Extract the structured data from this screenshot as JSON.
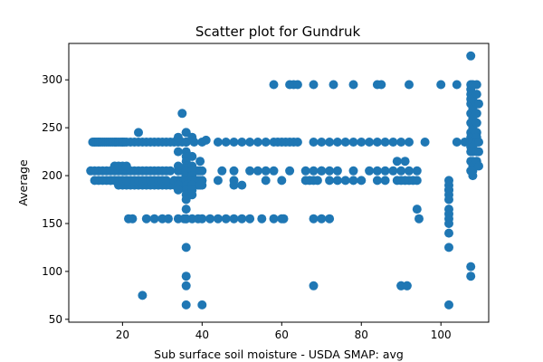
{
  "chart_data": {
    "type": "scatter",
    "title": "Scatter plot for Gundruk",
    "xlabel": "Sub surface soil moisture - USDA SMAP: avg",
    "ylabel": "Average",
    "xlim": [
      6.5,
      112
    ],
    "ylim": [
      47,
      338
    ],
    "xticks": [
      20,
      40,
      60,
      80,
      100
    ],
    "yticks": [
      50,
      100,
      150,
      200,
      250,
      300
    ],
    "grid": false,
    "legend": "none",
    "marker_color": "#1f77b4",
    "x": [
      12.5,
      13,
      13,
      13.5,
      14,
      14,
      14.5,
      15,
      15.5,
      16,
      16.5,
      17,
      17.5,
      18,
      18.5,
      19,
      19.5,
      20,
      20,
      20.5,
      21,
      22,
      23,
      24,
      25,
      26,
      27,
      28,
      29,
      30,
      31,
      32,
      33,
      35,
      36,
      12,
      13,
      14,
      15,
      16,
      17,
      18,
      19,
      20,
      20.5,
      21,
      22,
      23,
      24,
      25,
      26,
      27,
      28,
      29,
      30,
      31,
      32,
      34,
      35,
      36,
      37,
      38,
      39,
      40,
      19,
      20,
      21,
      22,
      23,
      24,
      25,
      26,
      27,
      28,
      29,
      30,
      31,
      32,
      33,
      34,
      35,
      36,
      37,
      38,
      39,
      40,
      17,
      18,
      19,
      20,
      21,
      22,
      23,
      24,
      25,
      26,
      27,
      28,
      29,
      30,
      31,
      33,
      34,
      35,
      36,
      37,
      38,
      39,
      40,
      13,
      14,
      15,
      16,
      17,
      18,
      19,
      20,
      21,
      24,
      36,
      35,
      18,
      19,
      20,
      21,
      21.5,
      22.5,
      26,
      28,
      30,
      31.5,
      34,
      35.5,
      36,
      37.5,
      39,
      40,
      42,
      44,
      46,
      48,
      50,
      52,
      55,
      58,
      60,
      60.5,
      34,
      36,
      38,
      40,
      41,
      44,
      46,
      48,
      50,
      52,
      54,
      56,
      58,
      59,
      60,
      61,
      62,
      63,
      64,
      68,
      70,
      72,
      74,
      76,
      78,
      80,
      82,
      84,
      86,
      88,
      90,
      92,
      96,
      104,
      106,
      45,
      48,
      52,
      58,
      62,
      66,
      68,
      70,
      74,
      78,
      82,
      84,
      86,
      88,
      89,
      90,
      91,
      92,
      94,
      38,
      40,
      44,
      48,
      56,
      60,
      66,
      67,
      68,
      69,
      72,
      74,
      76,
      78,
      80,
      84,
      86,
      89,
      90,
      91,
      92,
      93,
      94,
      48,
      50,
      54,
      56,
      70,
      72,
      58,
      62,
      63,
      64,
      68,
      73,
      78,
      84,
      85,
      92,
      100,
      104,
      68,
      70,
      72,
      90,
      91.5,
      94,
      94.5,
      36,
      36,
      36,
      36,
      36,
      36,
      36,
      36,
      36,
      36,
      36,
      36,
      36,
      36,
      36,
      36,
      36,
      36,
      37.5,
      37.5,
      37.5,
      37.5,
      37.5,
      37.5,
      37.5,
      37.5,
      37.5,
      34,
      34,
      34,
      34,
      34,
      39.5,
      39.5,
      39.5,
      39.5,
      25,
      36,
      40,
      68,
      90,
      91.5,
      102,
      102,
      102,
      102,
      102,
      102,
      102,
      102,
      102,
      102,
      102,
      102,
      102,
      107.5,
      107.5,
      107.5,
      107.5,
      107.5,
      107.5,
      107.5,
      107.5,
      107.5,
      107.5,
      107.5,
      107.5,
      107.5,
      107.5,
      107.5,
      107.5,
      107.5,
      108,
      108,
      108,
      108,
      108,
      108,
      108,
      108,
      108,
      108,
      108,
      108,
      108,
      108,
      109,
      109,
      109,
      109,
      109,
      109,
      109,
      109,
      109,
      109,
      109.5,
      109.5,
      109.5,
      109.5
    ],
    "y": [
      235,
      235,
      235,
      235,
      235,
      235,
      235,
      235,
      235,
      235,
      235,
      235,
      235,
      235,
      235,
      235,
      235,
      235,
      235,
      235,
      235,
      235,
      235,
      235,
      235,
      235,
      235,
      235,
      235,
      235,
      235,
      235,
      235,
      235,
      235,
      205,
      205,
      205,
      205,
      205,
      205,
      205,
      205,
      205,
      205,
      205,
      205,
      205,
      205,
      205,
      205,
      205,
      205,
      205,
      205,
      205,
      205,
      205,
      205,
      205,
      205,
      205,
      205,
      205,
      190,
      190,
      190,
      190,
      190,
      190,
      190,
      190,
      190,
      190,
      190,
      190,
      190,
      190,
      190,
      190,
      190,
      190,
      190,
      190,
      190,
      190,
      195,
      195,
      195,
      195,
      195,
      195,
      195,
      195,
      195,
      195,
      195,
      195,
      195,
      195,
      195,
      195,
      195,
      195,
      195,
      195,
      195,
      195,
      195,
      195,
      195,
      195,
      195,
      195,
      195,
      195,
      195,
      195,
      245,
      245,
      265,
      210,
      210,
      210,
      210,
      155,
      155,
      155,
      155,
      155,
      155,
      155,
      155,
      155,
      155,
      155,
      155,
      155,
      155,
      155,
      155,
      155,
      155,
      155,
      155,
      155,
      155,
      235,
      235,
      235,
      235,
      237,
      235,
      235,
      235,
      235,
      235,
      235,
      235,
      235,
      235,
      235,
      235,
      235,
      235,
      235,
      235,
      235,
      235,
      235,
      235,
      235,
      235,
      235,
      235,
      235,
      235,
      235,
      235,
      235,
      235,
      235,
      205,
      205,
      205,
      205,
      205,
      205,
      205,
      205,
      205,
      205,
      205,
      205,
      205,
      205,
      215,
      205,
      215,
      205,
      205,
      195,
      195,
      195,
      195,
      195,
      195,
      195,
      195,
      195,
      195,
      195,
      195,
      195,
      195,
      195,
      195,
      195,
      195,
      195,
      195,
      195,
      195,
      195,
      190,
      190,
      205,
      205,
      205,
      205,
      295,
      295,
      295,
      295,
      295,
      295,
      295,
      295,
      295,
      295,
      295,
      295,
      155,
      155,
      155,
      85,
      85,
      165,
      155,
      245,
      235,
      225,
      220,
      215,
      210,
      205,
      200,
      195,
      190,
      185,
      180,
      175,
      165,
      155,
      125,
      95,
      85,
      240,
      220,
      210,
      205,
      200,
      195,
      190,
      185,
      180,
      240,
      225,
      210,
      190,
      185,
      215,
      205,
      195,
      190,
      75,
      65,
      65,
      85,
      85,
      85,
      65,
      195,
      190,
      185,
      180,
      175,
      165,
      160,
      155,
      150,
      140,
      125,
      185,
      325,
      295,
      290,
      285,
      280,
      275,
      265,
      255,
      245,
      240,
      235,
      230,
      225,
      215,
      205,
      105,
      95,
      295,
      285,
      280,
      270,
      260,
      250,
      240,
      235,
      230,
      225,
      215,
      210,
      205,
      200,
      295,
      285,
      275,
      265,
      255,
      245,
      240,
      235,
      225,
      215,
      275,
      235,
      225,
      210
    ]
  }
}
